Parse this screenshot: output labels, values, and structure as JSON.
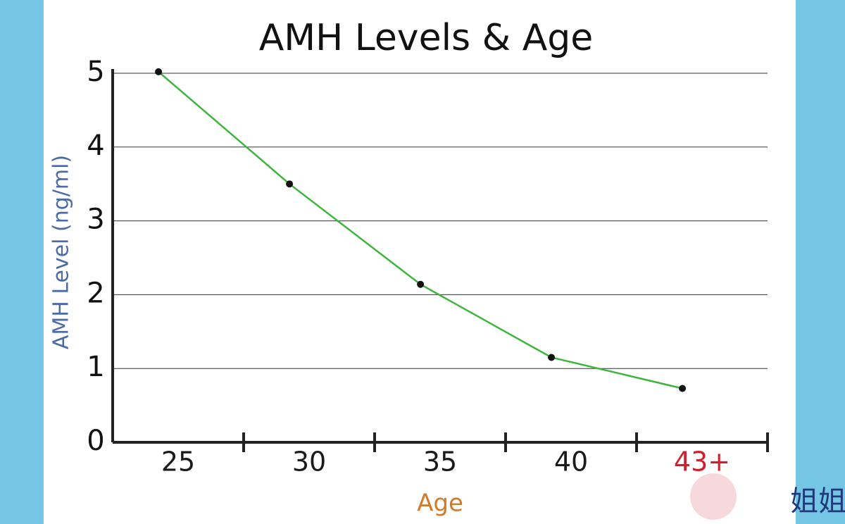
{
  "chart_data": {
    "type": "line",
    "title": "AMH Levels & Age",
    "x_label": "Age",
    "y_label": "AMH Level (ng/ml)",
    "categories": [
      "25",
      "30",
      "35",
      "40",
      "43+"
    ],
    "category_label_colors": [
      "#1a1a1a",
      "#1a1a1a",
      "#1a1a1a",
      "#1a1a1a",
      "#d0202f"
    ],
    "series": [
      {
        "name": "AMH Level",
        "color": "#3db53d",
        "values": [
          5.02,
          3.5,
          2.14,
          1.15,
          0.73
        ]
      }
    ],
    "ylim": [
      0,
      5
    ],
    "yticks": [
      0,
      1,
      2,
      3,
      4,
      5
    ],
    "grid": true,
    "watermark": "姐姐"
  }
}
